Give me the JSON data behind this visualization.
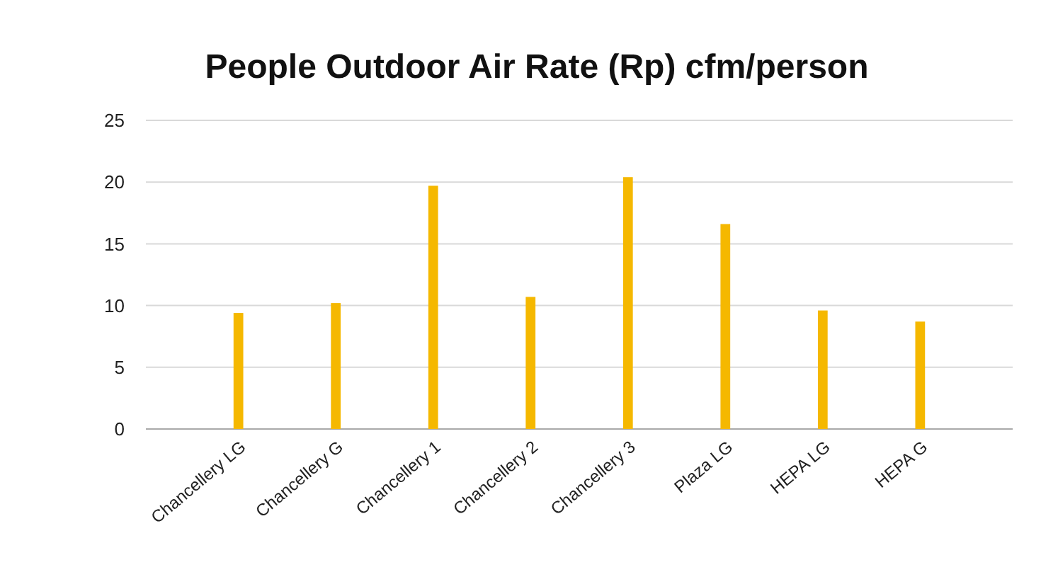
{
  "chart_data": {
    "type": "bar",
    "title": "People Outdoor Air Rate (Rp) cfm/person",
    "categories": [
      "Chancellery LG",
      "Chancellery G",
      "Chancellery 1",
      "Chancellery 2",
      "Chancellery 3",
      "Plaza LG",
      "HEPA LG",
      "HEPA G"
    ],
    "values": [
      9.4,
      10.2,
      19.7,
      10.7,
      20.4,
      16.6,
      9.6,
      8.7
    ],
    "color": "#f5b800",
    "ylim": [
      0,
      25
    ],
    "yticks": [
      0,
      5,
      10,
      15,
      20,
      25
    ],
    "grid": "y"
  }
}
